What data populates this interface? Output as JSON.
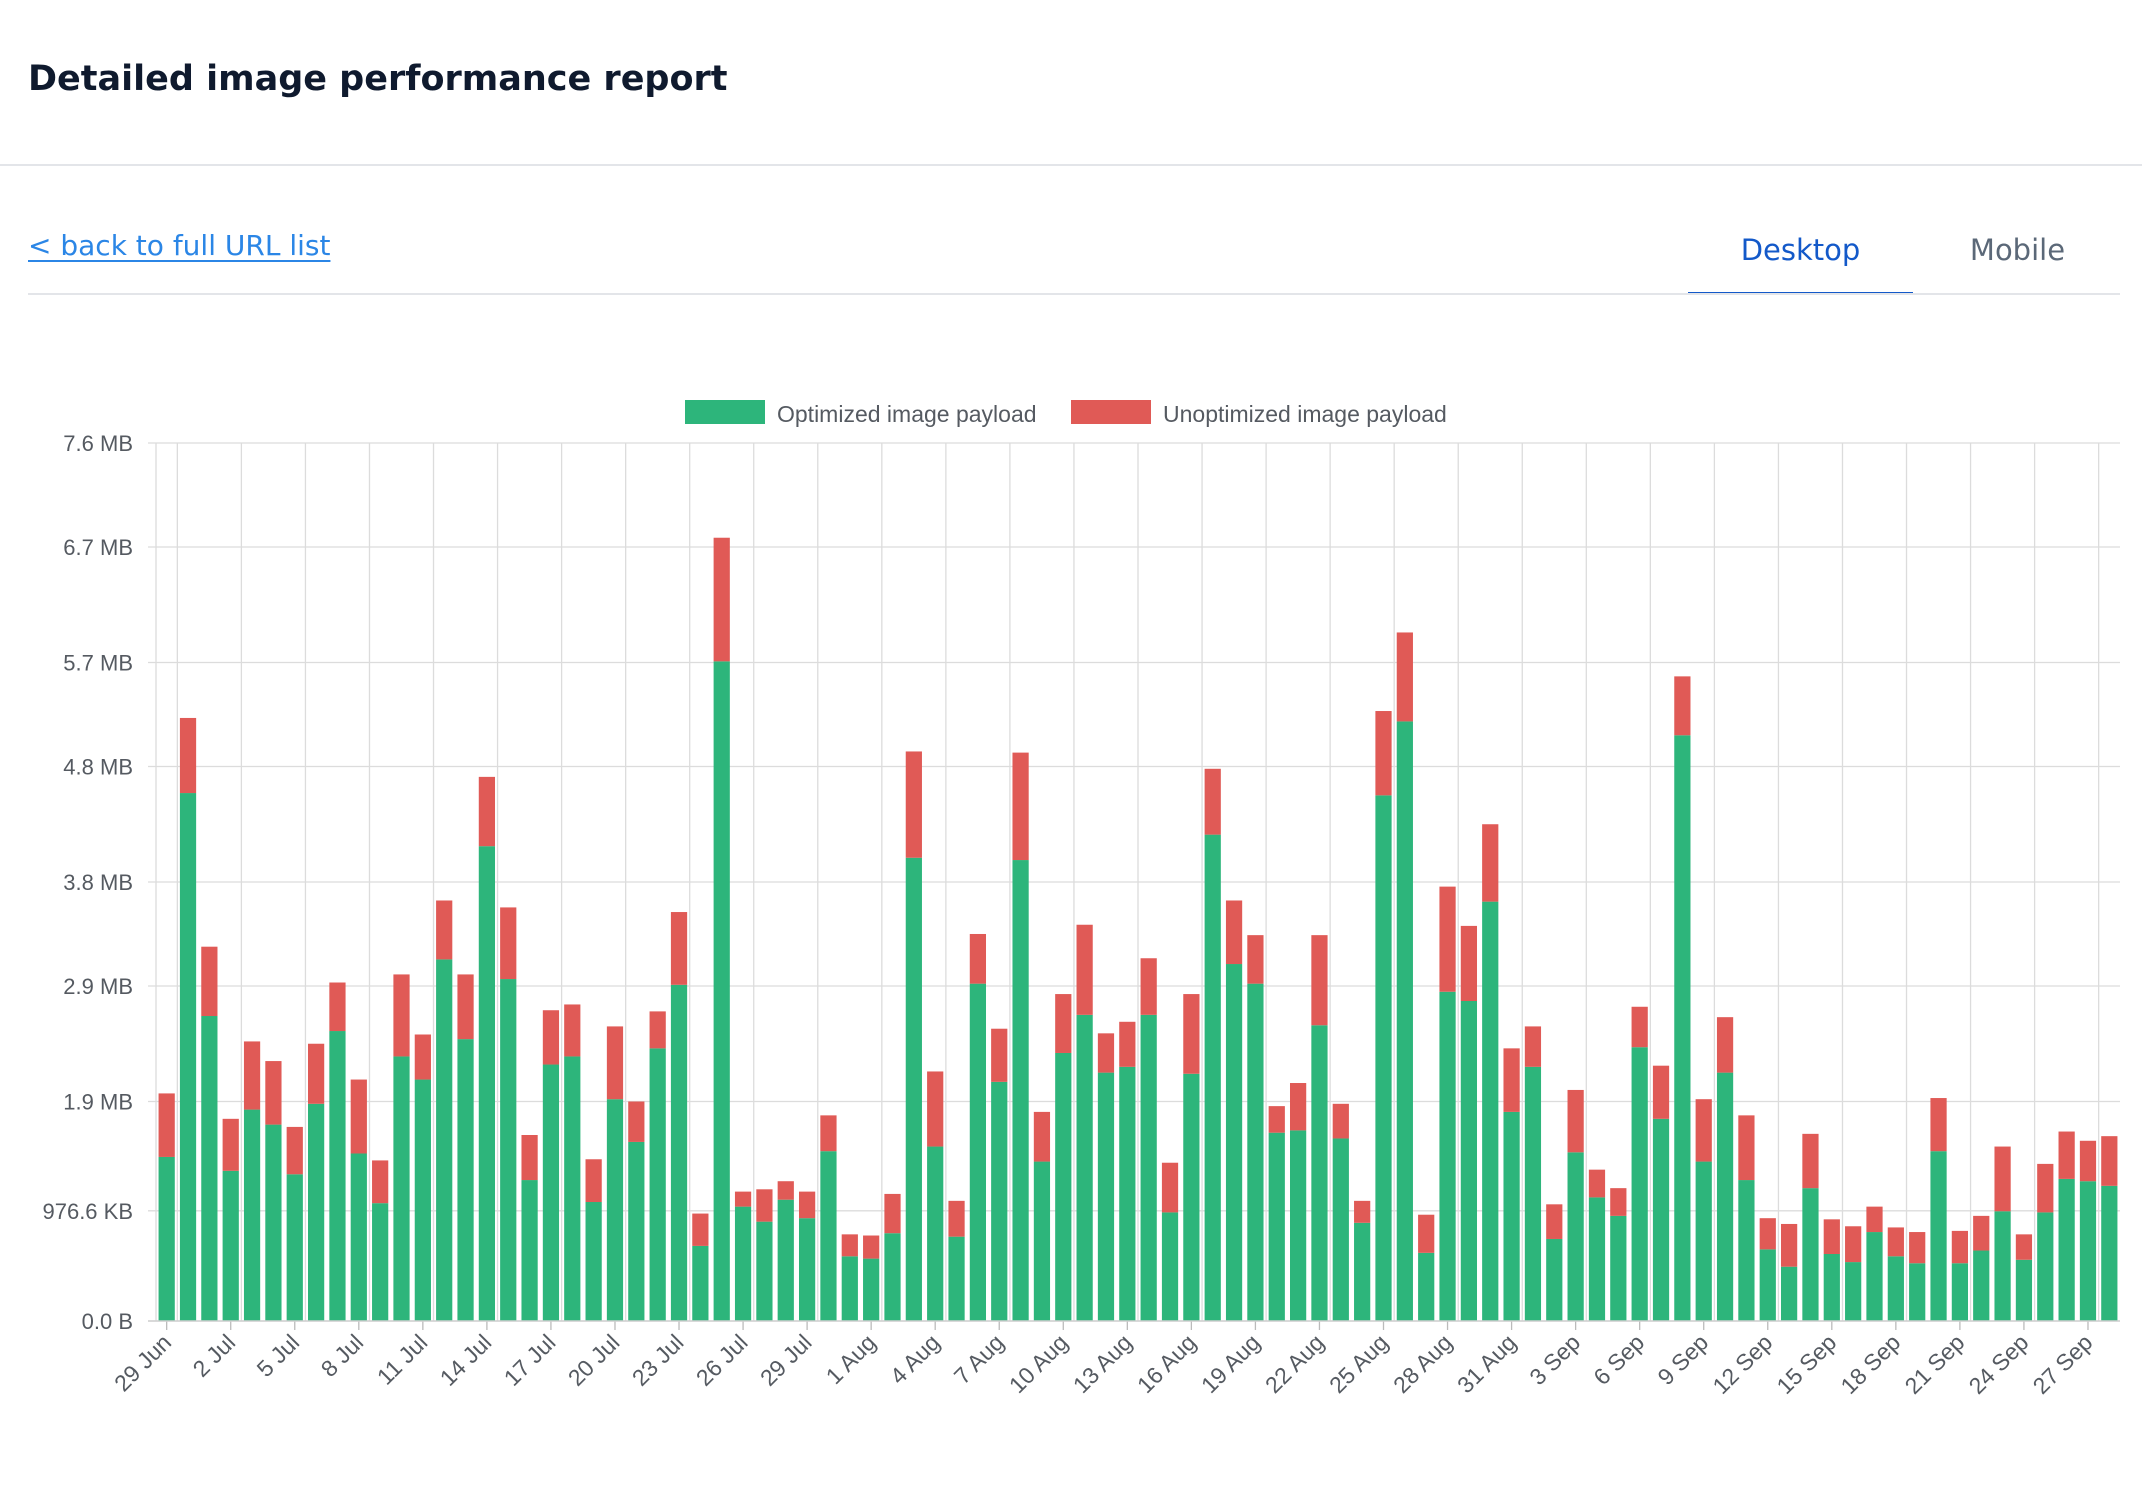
{
  "header": {
    "title": "Detailed image performance report"
  },
  "nav": {
    "back_link": "< back to full URL list",
    "tabs": [
      {
        "label": "Desktop",
        "active": true
      },
      {
        "label": "Mobile",
        "active": false
      }
    ]
  },
  "colors": {
    "optimized": "#2db57b",
    "unoptimized": "#e05a56",
    "accent": "#1359c9",
    "link": "#2b86e6"
  },
  "chart_data": {
    "type": "bar",
    "stacked": true,
    "grid": true,
    "legend_position": "top",
    "y_unit": "MB",
    "ylim": [
      0,
      7.6
    ],
    "y_tick_values": [
      0,
      0.954,
      1.9,
      2.9,
      3.8,
      4.8,
      5.7,
      6.7,
      7.6
    ],
    "y_tick_labels": [
      "0.0 B",
      "976.6 KB",
      "1.9 MB",
      "2.9 MB",
      "3.8 MB",
      "4.8 MB",
      "5.7 MB",
      "6.7 MB",
      "7.6 MB"
    ],
    "x_tick_labels": [
      "29 Jun",
      "2 Jul",
      "5 Jul",
      "8 Jul",
      "11 Jul",
      "14 Jul",
      "17 Jul",
      "20 Jul",
      "23 Jul",
      "26 Jul",
      "29 Jul",
      "1 Aug",
      "4 Aug",
      "7 Aug",
      "10 Aug",
      "13 Aug",
      "16 Aug",
      "19 Aug",
      "22 Aug",
      "25 Aug",
      "28 Aug",
      "31 Aug",
      "3 Sep",
      "6 Sep",
      "9 Sep",
      "12 Sep",
      "15 Sep",
      "18 Sep",
      "21 Sep",
      "24 Sep",
      "27 Sep"
    ],
    "categories": [
      "29 Jun",
      "30 Jun",
      "1 Jul",
      "2 Jul",
      "3 Jul",
      "4 Jul",
      "5 Jul",
      "6 Jul",
      "7 Jul",
      "8 Jul",
      "9 Jul",
      "10 Jul",
      "11 Jul",
      "12 Jul",
      "13 Jul",
      "14 Jul",
      "15 Jul",
      "16 Jul",
      "17 Jul",
      "18 Jul",
      "19 Jul",
      "20 Jul",
      "21 Jul",
      "22 Jul",
      "23 Jul",
      "24 Jul",
      "25 Jul",
      "26 Jul",
      "27 Jul",
      "28 Jul",
      "29 Jul",
      "30 Jul",
      "31 Jul",
      "1 Aug",
      "2 Aug",
      "3 Aug",
      "4 Aug",
      "5 Aug",
      "6 Aug",
      "7 Aug",
      "8 Aug",
      "9 Aug",
      "10 Aug",
      "11 Aug",
      "12 Aug",
      "13 Aug",
      "14 Aug",
      "15 Aug",
      "16 Aug",
      "17 Aug",
      "18 Aug",
      "19 Aug",
      "20 Aug",
      "21 Aug",
      "22 Aug",
      "23 Aug",
      "24 Aug",
      "25 Aug",
      "26 Aug",
      "27 Aug",
      "28 Aug",
      "29 Aug",
      "30 Aug",
      "31 Aug",
      "1 Sep",
      "2 Sep",
      "3 Sep",
      "4 Sep",
      "5 Sep",
      "6 Sep",
      "7 Sep",
      "8 Sep",
      "9 Sep",
      "10 Sep",
      "11 Sep",
      "12 Sep",
      "13 Sep",
      "14 Sep",
      "15 Sep",
      "16 Sep",
      "17 Sep",
      "18 Sep",
      "19 Sep",
      "20 Sep",
      "21 Sep",
      "22 Sep",
      "23 Sep",
      "24 Sep",
      "25 Sep",
      "26 Sep",
      "27 Sep",
      "28 Sep"
    ],
    "series": [
      {
        "name": "Optimized image payload",
        "values": [
          1.42,
          4.57,
          2.64,
          1.3,
          1.83,
          1.7,
          1.27,
          1.88,
          2.51,
          1.45,
          1.02,
          2.29,
          2.09,
          3.13,
          2.44,
          4.11,
          2.96,
          1.22,
          2.22,
          2.29,
          1.03,
          1.92,
          1.55,
          2.36,
          2.91,
          0.65,
          5.71,
          0.99,
          0.86,
          1.05,
          0.89,
          1.47,
          0.56,
          0.54,
          0.76,
          4.01,
          1.51,
          0.73,
          2.92,
          2.07,
          3.99,
          1.38,
          2.32,
          2.65,
          2.15,
          2.2,
          2.65,
          0.94,
          2.14,
          4.21,
          3.09,
          2.92,
          1.63,
          1.65,
          2.56,
          1.58,
          0.85,
          4.55,
          5.19,
          0.59,
          2.85,
          2.77,
          3.63,
          1.81,
          2.2,
          0.71,
          1.46,
          1.07,
          0.91,
          2.37,
          1.75,
          5.07,
          1.38,
          2.15,
          1.22,
          0.62,
          0.47,
          1.15,
          0.58,
          0.51,
          0.77,
          0.56,
          0.5,
          1.47,
          0.5,
          0.61,
          0.95,
          0.53,
          0.94,
          1.23,
          1.21,
          1.17
        ]
      },
      {
        "name": "Unoptimized image payload",
        "values": [
          0.55,
          0.65,
          0.6,
          0.45,
          0.59,
          0.55,
          0.41,
          0.52,
          0.42,
          0.64,
          0.37,
          0.71,
          0.39,
          0.51,
          0.56,
          0.6,
          0.62,
          0.39,
          0.47,
          0.45,
          0.37,
          0.63,
          0.35,
          0.32,
          0.63,
          0.28,
          1.07,
          0.13,
          0.28,
          0.16,
          0.23,
          0.31,
          0.19,
          0.2,
          0.34,
          0.92,
          0.65,
          0.31,
          0.43,
          0.46,
          0.93,
          0.43,
          0.51,
          0.78,
          0.34,
          0.39,
          0.49,
          0.43,
          0.69,
          0.57,
          0.55,
          0.42,
          0.23,
          0.41,
          0.78,
          0.3,
          0.19,
          0.73,
          0.77,
          0.33,
          0.91,
          0.65,
          0.67,
          0.55,
          0.35,
          0.3,
          0.54,
          0.24,
          0.24,
          0.35,
          0.46,
          0.51,
          0.54,
          0.48,
          0.56,
          0.27,
          0.37,
          0.47,
          0.3,
          0.31,
          0.22,
          0.25,
          0.27,
          0.46,
          0.28,
          0.3,
          0.56,
          0.22,
          0.42,
          0.41,
          0.35,
          0.43
        ]
      }
    ]
  }
}
